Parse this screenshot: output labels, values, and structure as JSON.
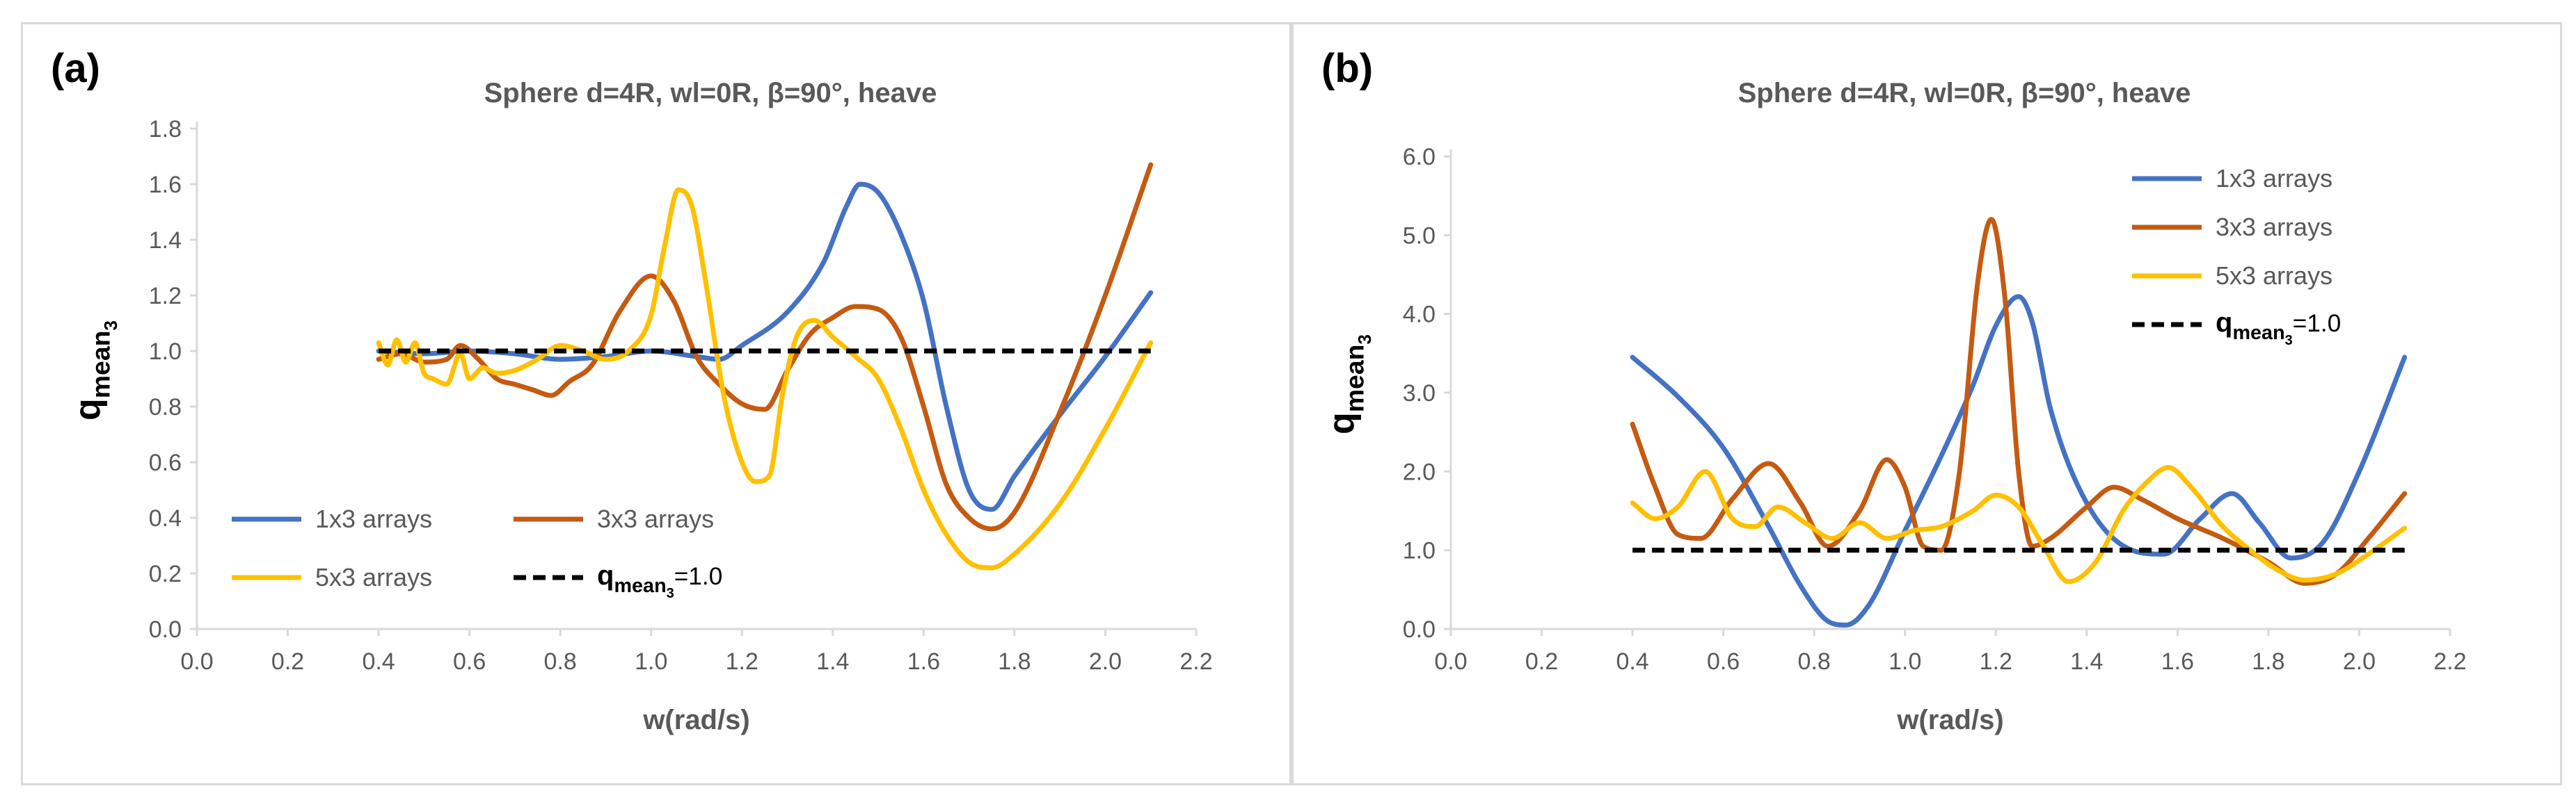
{
  "colors": {
    "series_1x3": "#4472C4",
    "series_3x3": "#C55A11",
    "series_5x3": "#FFC000",
    "reference": "#000000",
    "axis_text": "#595959",
    "axis_line": "#d9d9d9"
  },
  "chart_data": [
    {
      "panel_label": "(a)",
      "type": "line",
      "title": "Sphere d=4R, wl=0R, β=90°, heave",
      "xlabel": "w(rad/s)",
      "ylabel": "qmean",
      "ylabel_main": "q",
      "ylabel_sub": "mean",
      "ylabel_subsub": "3",
      "xlim": [
        0.0,
        2.2
      ],
      "ylim": [
        0.0,
        1.8
      ],
      "xticks": [
        "0.0",
        "0.2",
        "0.4",
        "0.6",
        "0.8",
        "1.0",
        "1.2",
        "1.4",
        "1.6",
        "1.8",
        "2.0",
        "2.2"
      ],
      "yticks": [
        "0.0",
        "0.2",
        "0.4",
        "0.6",
        "0.8",
        "1.0",
        "1.2",
        "1.4",
        "1.6",
        "1.8"
      ],
      "legend": {
        "placement": "bottom-left",
        "entries": [
          "1x3 arrays",
          "3x3 arrays",
          "5x3 arrays"
        ],
        "reference_label_main": "q",
        "reference_label_sub": "mean",
        "reference_label_subsub": "3",
        "reference_label_tail": "=1.0"
      },
      "series": [
        {
          "name": "1x3 arrays",
          "x": [
            0.4,
            0.5,
            0.6,
            0.7,
            0.8,
            0.9,
            1.0,
            1.1,
            1.15,
            1.2,
            1.3,
            1.38,
            1.43,
            1.46,
            1.5,
            1.55,
            1.6,
            1.65,
            1.7,
            1.75,
            1.8,
            1.9,
            2.0,
            2.1
          ],
          "values": [
            1.0,
            0.99,
            1.0,
            0.99,
            0.97,
            0.98,
            1.0,
            0.98,
            0.97,
            1.02,
            1.14,
            1.32,
            1.52,
            1.6,
            1.57,
            1.42,
            1.18,
            0.8,
            0.5,
            0.43,
            0.55,
            0.77,
            0.98,
            1.21
          ]
        },
        {
          "name": "3x3 arrays",
          "x": [
            0.4,
            0.45,
            0.5,
            0.55,
            0.58,
            0.62,
            0.66,
            0.7,
            0.74,
            0.78,
            0.82,
            0.87,
            0.93,
            1.0,
            1.05,
            1.1,
            1.15,
            1.2,
            1.25,
            1.3,
            1.35,
            1.4,
            1.45,
            1.5,
            1.55,
            1.6,
            1.65,
            1.7,
            1.75,
            1.8,
            1.9,
            2.0,
            2.1
          ],
          "values": [
            0.97,
            0.99,
            0.96,
            0.97,
            1.02,
            0.97,
            0.9,
            0.88,
            0.86,
            0.84,
            0.89,
            0.95,
            1.14,
            1.27,
            1.18,
            0.98,
            0.88,
            0.81,
            0.79,
            0.93,
            1.06,
            1.12,
            1.16,
            1.15,
            1.05,
            0.8,
            0.52,
            0.4,
            0.36,
            0.42,
            0.78,
            1.2,
            1.67
          ]
        },
        {
          "name": "5x3 arrays",
          "x": [
            0.4,
            0.42,
            0.44,
            0.46,
            0.48,
            0.5,
            0.52,
            0.55,
            0.58,
            0.6,
            0.63,
            0.66,
            0.7,
            0.75,
            0.8,
            0.85,
            0.9,
            0.95,
            1.0,
            1.03,
            1.06,
            1.09,
            1.12,
            1.16,
            1.2,
            1.23,
            1.26,
            1.29,
            1.32,
            1.36,
            1.4,
            1.45,
            1.5,
            1.55,
            1.6,
            1.65,
            1.7,
            1.75,
            1.8,
            1.9,
            2.0,
            2.1
          ],
          "values": [
            1.03,
            0.95,
            1.04,
            0.96,
            1.03,
            0.92,
            0.9,
            0.88,
            0.99,
            0.9,
            0.94,
            0.92,
            0.93,
            0.97,
            1.02,
            1.0,
            0.97,
            1.0,
            1.13,
            1.38,
            1.58,
            1.52,
            1.25,
            0.84,
            0.6,
            0.53,
            0.55,
            0.85,
            1.05,
            1.11,
            1.05,
            0.98,
            0.9,
            0.72,
            0.5,
            0.34,
            0.24,
            0.22,
            0.27,
            0.45,
            0.72,
            1.03
          ]
        }
      ],
      "reference": {
        "name": "qmean3=1.0",
        "x": [
          0.4,
          2.1
        ],
        "values": [
          1.0,
          1.0
        ]
      }
    },
    {
      "panel_label": "(b)",
      "type": "line",
      "title": "Sphere d=4R, wl=0R, β=90°, heave",
      "xlabel": "w(rad/s)",
      "ylabel": "qmean",
      "ylabel_main": "q",
      "ylabel_sub": "mean",
      "ylabel_subsub": "3",
      "xlim": [
        0.0,
        2.2
      ],
      "ylim": [
        0.0,
        6.0
      ],
      "xticks": [
        "0.0",
        "0.2",
        "0.4",
        "0.6",
        "0.8",
        "1.0",
        "1.2",
        "1.4",
        "1.6",
        "1.8",
        "2.0",
        "2.2"
      ],
      "yticks": [
        "0.0",
        "1.0",
        "2.0",
        "3.0",
        "4.0",
        "5.0",
        "6.0"
      ],
      "legend": {
        "placement": "top-right",
        "entries": [
          "1x3 arrays",
          "3x3 arrays",
          "5x3 arrays"
        ],
        "reference_label_main": "q",
        "reference_label_sub": "mean",
        "reference_label_subsub": "3",
        "reference_label_tail": "=1.0"
      },
      "series": [
        {
          "name": "1x3 arrays",
          "x": [
            0.4,
            0.5,
            0.6,
            0.7,
            0.77,
            0.83,
            0.87,
            0.92,
            1.0,
            1.08,
            1.15,
            1.2,
            1.25,
            1.28,
            1.32,
            1.4,
            1.5,
            1.57,
            1.65,
            1.72,
            1.78,
            1.85,
            1.92,
            2.0,
            2.1
          ],
          "values": [
            3.45,
            2.95,
            2.3,
            1.3,
            0.55,
            0.1,
            0.05,
            0.3,
            1.25,
            2.2,
            3.1,
            3.85,
            4.22,
            3.9,
            2.8,
            1.6,
            1.0,
            0.95,
            1.4,
            1.72,
            1.35,
            0.9,
            1.1,
            2.0,
            3.45
          ]
        },
        {
          "name": "3x3 arrays",
          "x": [
            0.4,
            0.45,
            0.5,
            0.55,
            0.62,
            0.7,
            0.77,
            0.83,
            0.9,
            0.96,
            1.0,
            1.04,
            1.08,
            1.12,
            1.16,
            1.19,
            1.22,
            1.25,
            1.28,
            1.32,
            1.4,
            1.46,
            1.52,
            1.6,
            1.7,
            1.8,
            1.88,
            1.95,
            2.02,
            2.1
          ],
          "values": [
            2.6,
            1.8,
            1.2,
            1.15,
            1.65,
            2.1,
            1.6,
            1.05,
            1.5,
            2.15,
            1.8,
            1.05,
            1.0,
            2.0,
            4.4,
            5.2,
            4.2,
            2.0,
            1.05,
            1.15,
            1.55,
            1.8,
            1.65,
            1.4,
            1.15,
            0.85,
            0.58,
            0.7,
            1.15,
            1.72
          ]
        },
        {
          "name": "5x3 arrays",
          "x": [
            0.4,
            0.45,
            0.5,
            0.56,
            0.62,
            0.67,
            0.72,
            0.78,
            0.84,
            0.9,
            0.96,
            1.02,
            1.08,
            1.15,
            1.2,
            1.25,
            1.3,
            1.36,
            1.42,
            1.48,
            1.53,
            1.58,
            1.63,
            1.7,
            1.76,
            1.82,
            1.88,
            1.95,
            2.02,
            2.1
          ],
          "values": [
            1.6,
            1.4,
            1.55,
            2.0,
            1.4,
            1.3,
            1.55,
            1.35,
            1.15,
            1.35,
            1.15,
            1.25,
            1.3,
            1.5,
            1.7,
            1.55,
            1.1,
            0.6,
            0.85,
            1.5,
            1.85,
            2.05,
            1.8,
            1.3,
            1.0,
            0.75,
            0.62,
            0.7,
            0.95,
            1.28
          ]
        }
      ],
      "reference": {
        "name": "qmean3=1.0",
        "x": [
          0.4,
          2.1
        ],
        "values": [
          1.0,
          1.0
        ]
      }
    }
  ]
}
